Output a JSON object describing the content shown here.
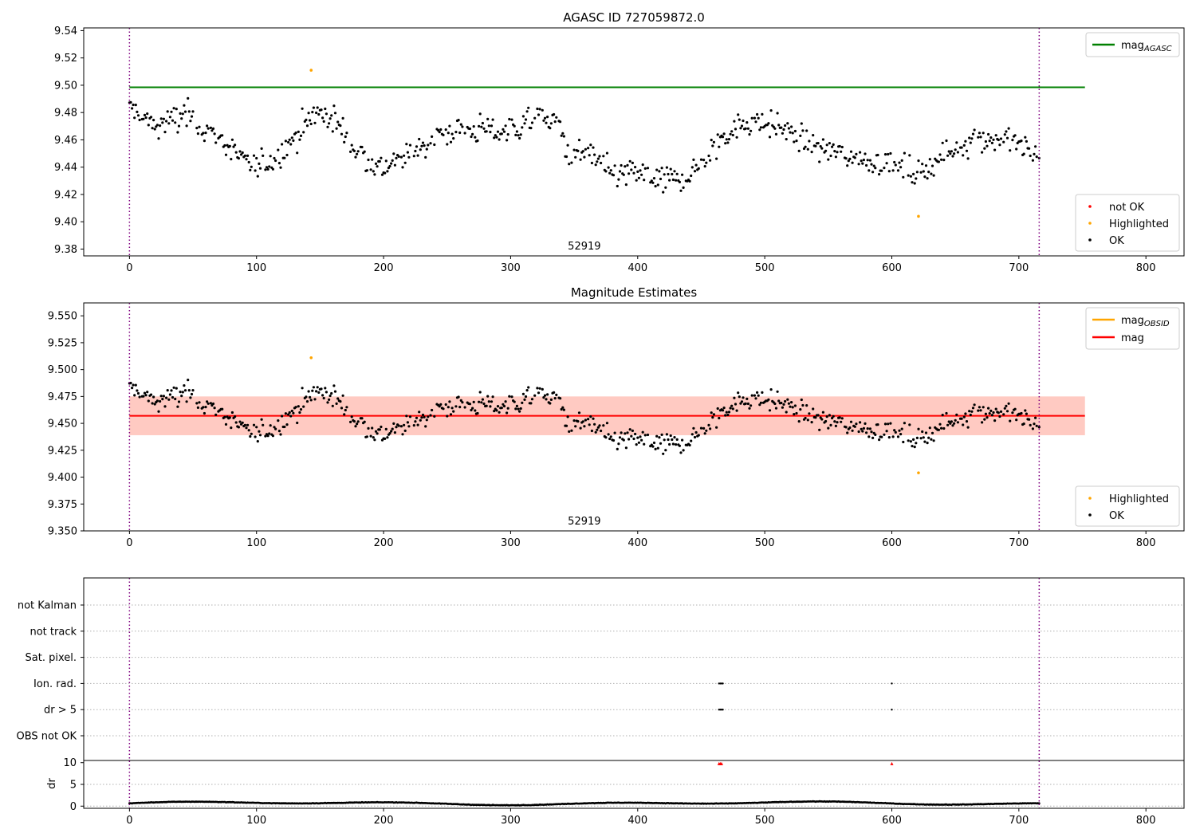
{
  "chart_data": [
    {
      "type": "scatter",
      "title": "AGASC ID 727059872.0",
      "xlim": [
        -36,
        830
      ],
      "ylim": [
        9.375,
        9.542
      ],
      "xticks": [
        0,
        100,
        200,
        300,
        400,
        500,
        600,
        700,
        800
      ],
      "yticks": [
        9.38,
        9.4,
        9.42,
        9.44,
        9.46,
        9.48,
        9.5,
        9.52,
        9.54
      ],
      "ytick_decimals": 2,
      "obsid_label": "52919",
      "obs_bounds": [
        0,
        716
      ],
      "hline": {
        "y": 9.4985,
        "x_end": 752,
        "color": "#008000"
      },
      "legend_lines": [
        {
          "label": "mag",
          "sub": "AGASC",
          "color": "#008000"
        }
      ],
      "legend_points": [
        {
          "label": "not OK",
          "color": "#ff0000"
        },
        {
          "label": "Highlighted",
          "color": "#ffa500"
        },
        {
          "label": "OK",
          "color": "#000000"
        }
      ],
      "highlighted": [
        {
          "x": 143,
          "y": 9.511
        },
        {
          "x": 621,
          "y": 9.404
        }
      ]
    },
    {
      "type": "scatter",
      "title": "Magnitude Estimates",
      "xlim": [
        -36,
        830
      ],
      "ylim": [
        9.35,
        9.562
      ],
      "xticks": [
        0,
        100,
        200,
        300,
        400,
        500,
        600,
        700,
        800
      ],
      "yticks": [
        9.35,
        9.375,
        9.4,
        9.425,
        9.45,
        9.475,
        9.5,
        9.525,
        9.55
      ],
      "ytick_decimals": 3,
      "obsid_label": "52919",
      "obs_bounds": [
        0,
        716
      ],
      "mag_line": {
        "y": 9.457,
        "x_end": 752,
        "color": "#ff0000"
      },
      "band": {
        "y0": 9.439,
        "y1": 9.475,
        "x_end": 752
      },
      "legend_lines": [
        {
          "label": "mag",
          "sub": "OBSID",
          "color": "#ffa500"
        },
        {
          "label": "mag",
          "sub": "",
          "color": "#ff0000"
        }
      ],
      "legend_points": [
        {
          "label": "Highlighted",
          "color": "#ffa500"
        },
        {
          "label": "OK",
          "color": "#000000"
        }
      ],
      "highlighted": [
        {
          "x": 143,
          "y": 9.511
        },
        {
          "x": 621,
          "y": 9.404
        }
      ]
    },
    {
      "type": "scatter",
      "title": "",
      "xlim": [
        -36,
        830
      ],
      "xticks": [
        0,
        100,
        200,
        300,
        400,
        500,
        600,
        700,
        800
      ],
      "flag_labels": [
        "not Kalman",
        "not track",
        "Sat. pixel.",
        "Ion. rad.",
        "dr > 5",
        "OBS not OK"
      ],
      "flag_points": [
        {
          "flag": "Ion. rad.",
          "x": [
            464,
            465,
            466,
            467,
            600
          ]
        },
        {
          "flag": "dr > 5",
          "x": [
            464,
            465,
            466,
            467,
            600
          ]
        }
      ],
      "dr_ylabel": "dr",
      "dr_ylim": [
        -0.5,
        10.5
      ],
      "dr_yticks": [
        0,
        5,
        10
      ],
      "dr_outliers": [
        {
          "x": 464,
          "y": 9.8
        },
        {
          "x": 465,
          "y": 9.8
        },
        {
          "x": 466,
          "y": 9.8
        },
        {
          "x": 600,
          "y": 9.8
        }
      ],
      "obs_bounds": [
        0,
        716
      ]
    }
  ]
}
